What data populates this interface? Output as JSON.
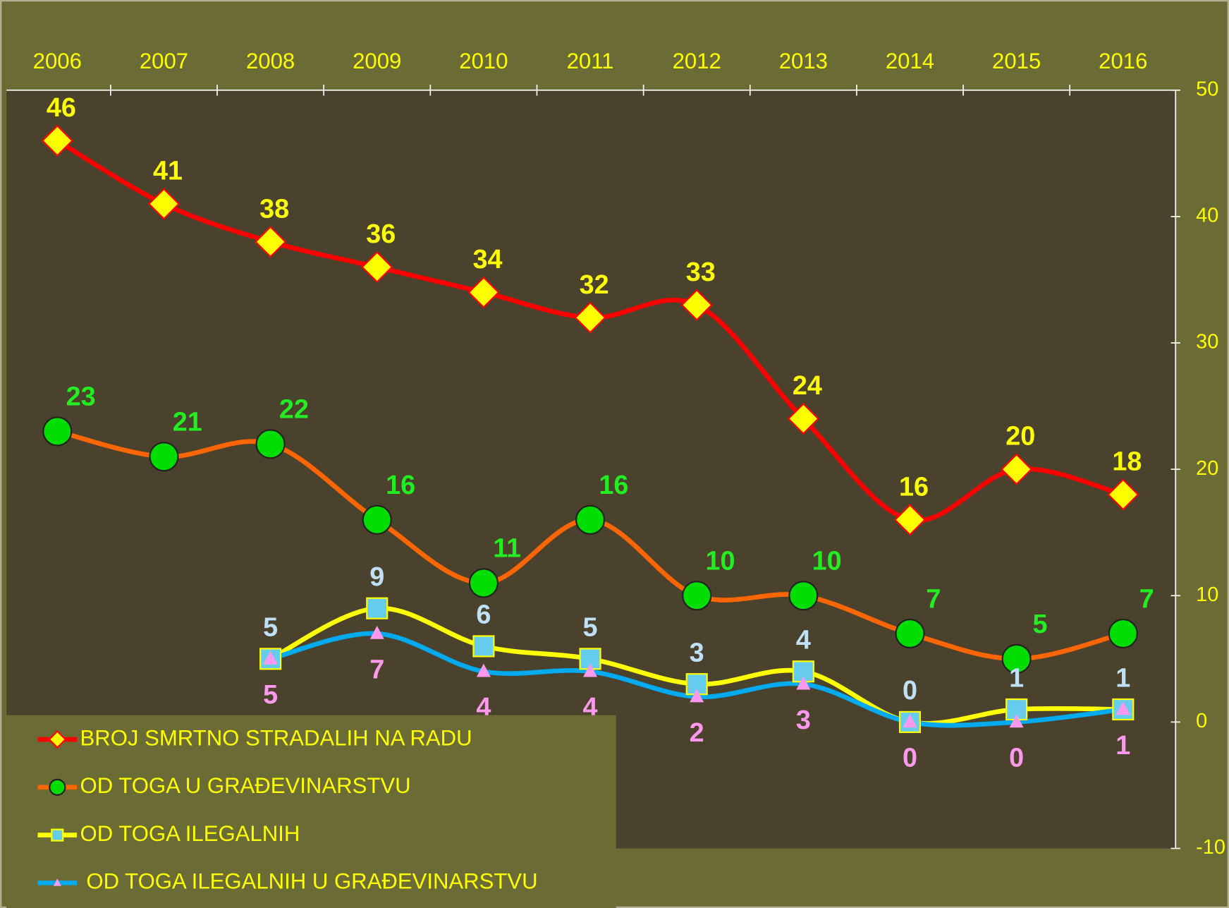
{
  "chart_data": {
    "type": "line",
    "categories": [
      "2006",
      "2007",
      "2008",
      "2009",
      "2010",
      "2011",
      "2012",
      "2013",
      "2014",
      "2015",
      "2016"
    ],
    "ylim": [
      -10,
      50
    ],
    "yticks": [
      -10,
      0,
      10,
      20,
      30,
      40,
      50
    ],
    "legend": "bottom-left",
    "series": [
      {
        "name": "BROJ SMRTNO STRADALIH NA RADU",
        "color": "#ff0000",
        "marker": "diamond",
        "marker_color": "#ffff00",
        "label_color": "#ffff00",
        "values": [
          46,
          41,
          38,
          36,
          34,
          32,
          33,
          24,
          16,
          20,
          18
        ]
      },
      {
        "name": "OD TOGA U GRAĐEVINARSTVU",
        "color": "#ff6600",
        "marker": "circle",
        "marker_color": "#00dd00",
        "label_color": "#22ee22",
        "values": [
          23,
          21,
          22,
          16,
          11,
          16,
          10,
          10,
          7,
          5,
          7
        ]
      },
      {
        "name": "OD TOGA ILEGALNIH",
        "color": "#ffff00",
        "marker": "square",
        "marker_color": "#66ccee",
        "label_color": "#bfe0f5",
        "values": [
          null,
          null,
          5,
          9,
          6,
          5,
          3,
          4,
          0,
          1,
          1
        ]
      },
      {
        "name": "OD TOGA ILEGALNIH U GRAĐEVINARSTVU",
        "color": "#00aaee",
        "marker": "triangle",
        "marker_color": "#ff99ee",
        "label_color": "#ff99ee",
        "values": [
          null,
          null,
          5,
          7,
          4,
          4,
          2,
          3,
          0,
          0,
          1
        ]
      }
    ]
  }
}
